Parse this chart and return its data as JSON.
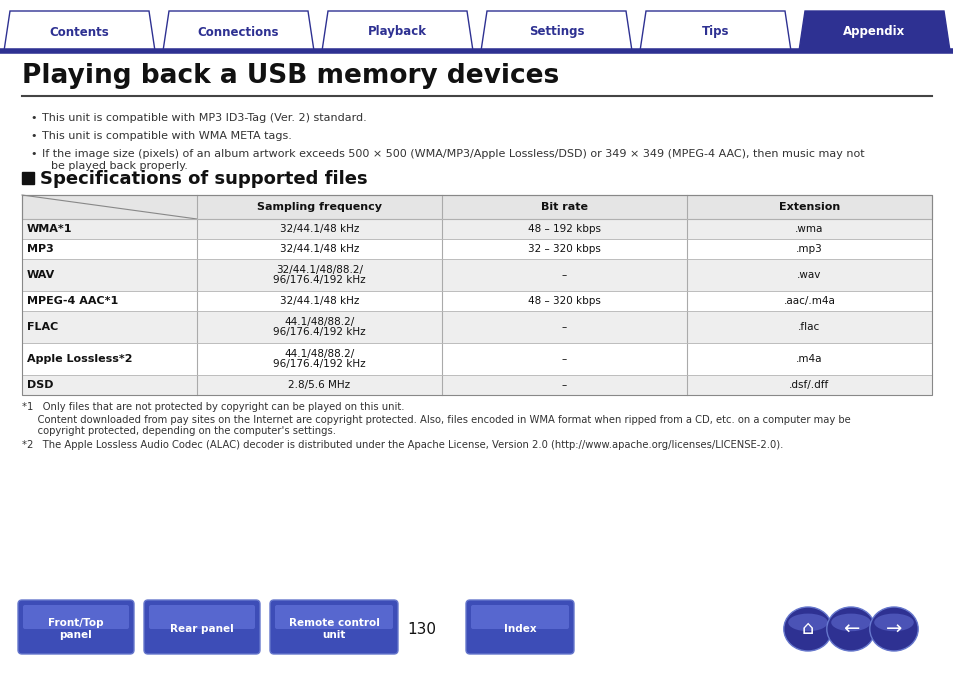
{
  "title": "Playing back a USB memory devices",
  "nav_tabs": [
    "Contents",
    "Connections",
    "Playback",
    "Settings",
    "Tips",
    "Appendix"
  ],
  "nav_active": "Appendix",
  "nav_color_active": "#2e3192",
  "nav_color_inactive": "#ffffff",
  "nav_border_color": "#2e3192",
  "bullet_points": [
    "This unit is compatible with MP3 ID3-Tag (Ver. 2) standard.",
    "This unit is compatible with WMA META tags.",
    "If the image size (pixels) of an album artwork exceeds 500 × 500 (WMA/MP3/Apple Lossless/DSD) or 349 × 349 (MPEG-4 AAC), then music may not",
    "be played back properly."
  ],
  "section_title": "Specifications of supported files",
  "table_headers": [
    "Sampling frequency",
    "Bit rate",
    "Extension"
  ],
  "table_rows": [
    [
      "WMA*1",
      "32/44.1/48 kHz",
      "48 – 192 kbps",
      ".wma"
    ],
    [
      "MP3",
      "32/44.1/48 kHz",
      "32 – 320 kbps",
      ".mp3"
    ],
    [
      "WAV",
      "32/44.1/48/88.2/\n96/176.4/192 kHz",
      "–",
      ".wav"
    ],
    [
      "MPEG-4 AAC*1",
      "32/44.1/48 kHz",
      "48 – 320 kbps",
      ".aac/.m4a"
    ],
    [
      "FLAC",
      "44.1/48/88.2/\n96/176.4/192 kHz",
      "–",
      ".flac"
    ],
    [
      "Apple Lossless*2",
      "44.1/48/88.2/\n96/176.4/192 kHz",
      "–",
      ".m4a"
    ],
    [
      "DSD",
      "2.8/5.6 MHz",
      "–",
      ".dsf/.dff"
    ]
  ],
  "footnote1a": "*1   Only files that are not protected by copyright can be played on this unit.",
  "footnote1b": "     Content downloaded from pay sites on the Internet are copyright protected. Also, files encoded in WMA format when ripped from a CD, etc. on a computer may be",
  "footnote1c": "     copyright protected, depending on the computer's settings.",
  "footnote2": "*2   The Apple Lossless Audio Codec (ALAC) decoder is distributed under the Apache License, Version 2.0 (http://www.apache.org/licenses/LICENSE-2.0).",
  "bottom_buttons": [
    "Front/Top\npanel",
    "Rear panel",
    "Remote control\nunit",
    "Index"
  ],
  "page_number": "130",
  "bg_color": "#ffffff",
  "text_color": "#000000",
  "nav_active_color": "#2e3192",
  "button_color": "#3d4db7"
}
